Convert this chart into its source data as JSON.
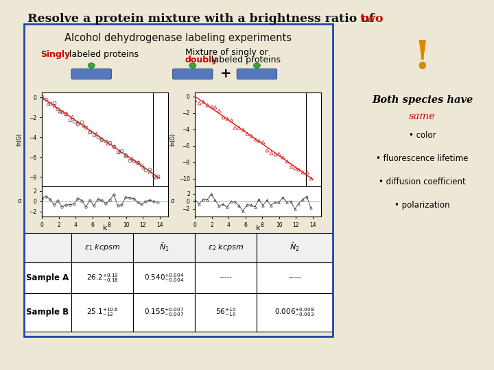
{
  "title_main": "Resolve a protein mixture with a brightness ratio of ",
  "title_red": "two",
  "subtitle": "Alcohol dehydrogenase labeling experiments",
  "label_singly": "Singly",
  "label_singly_rest": " labeled proteins",
  "label_mixture": "Mixture of singly or",
  "label_doubly": "doubly",
  "label_doubly_rest": " labeled proteins",
  "right_title": "Both species have",
  "right_same": "same",
  "right_bullets": [
    "• color",
    "• fluorescence lifetime",
    "• diffusion coefficient",
    "• polarization"
  ],
  "bg_color": "#ede8d5",
  "gold_strip_color": "#c8a832",
  "box_border_color": "#2244aa",
  "title_color": "#111111",
  "red_color": "#cc0000",
  "molecule_color": "#5577bb",
  "green_dot_color": "#33aa33",
  "plot1_xlim": [
    0,
    15
  ],
  "plot1_ylim": [
    -9,
    0.5
  ],
  "plot2_ylim": [
    -11,
    0.5
  ],
  "resid_ylim": [
    -3,
    3
  ]
}
